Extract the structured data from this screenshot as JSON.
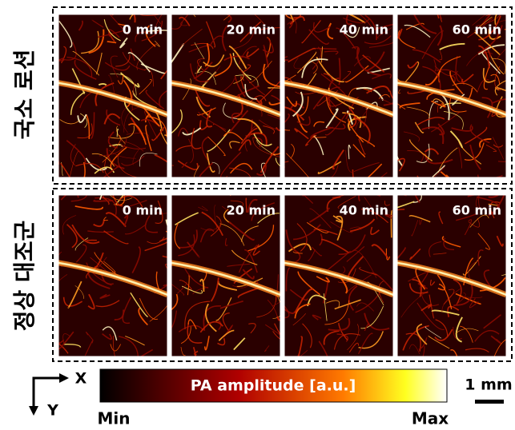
{
  "rows": [
    {
      "label": "국소 로션",
      "panels": [
        "0 min",
        "20 min",
        "40 min",
        "60 min"
      ]
    },
    {
      "label": "정상 대조군",
      "panels": [
        "0 min",
        "20 min",
        "40 min",
        "60 min"
      ]
    }
  ],
  "colorbar": {
    "label": "PA amplitude [a.u.]",
    "min": "Min",
    "max": "Max"
  },
  "axes": {
    "x": "X",
    "y": "Y"
  },
  "scale_bar": "1 mm"
}
